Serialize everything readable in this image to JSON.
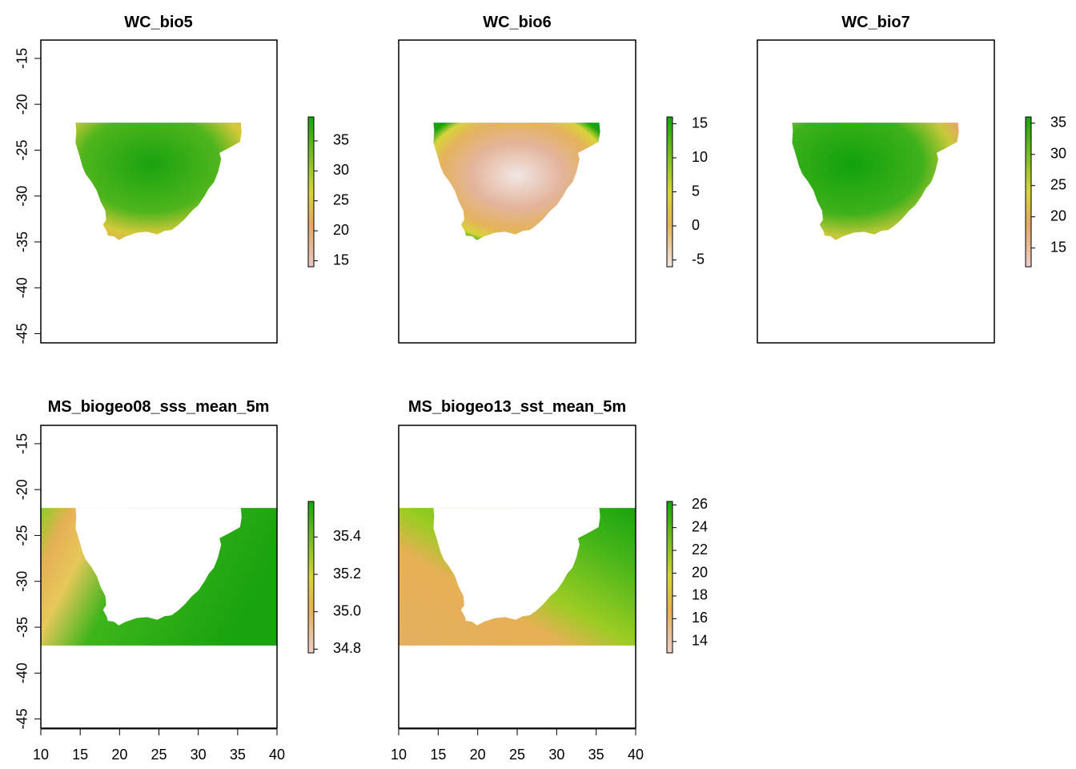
{
  "chart_data": [
    {
      "type": "heatmap",
      "title": "WC_bio5",
      "xlim": [
        10,
        40
      ],
      "ylim": [
        -46,
        -13
      ],
      "xticks": [],
      "yticks": [
        -15,
        -20,
        -25,
        -30,
        -35,
        -40,
        -45
      ],
      "extent": "land",
      "colorbar": {
        "range": [
          14,
          39
        ],
        "ticks": [
          15,
          20,
          25,
          30,
          35
        ]
      },
      "colors": {
        "low": "#e8c8c0",
        "mid": "#e6a763",
        "high": "#19a30f"
      }
    },
    {
      "type": "heatmap",
      "title": "WC_bio6",
      "xlim": [
        10,
        40
      ],
      "ylim": [
        -46,
        -13
      ],
      "xticks": [],
      "yticks": [],
      "extent": "land",
      "colorbar": {
        "range": [
          -6,
          16
        ],
        "ticks": [
          -5,
          0,
          5,
          10,
          15
        ]
      },
      "colors": {
        "low": "#f2e6e3",
        "mid": "#e5b35c",
        "high": "#19a30f"
      }
    },
    {
      "type": "heatmap",
      "title": "WC_bio7",
      "xlim": [
        10,
        40
      ],
      "ylim": [
        -46,
        -13
      ],
      "xticks": [],
      "yticks": [],
      "extent": "land",
      "colorbar": {
        "range": [
          12,
          36
        ],
        "ticks": [
          15,
          20,
          25,
          30,
          35
        ]
      },
      "colors": {
        "low": "#eccfc8",
        "mid": "#e6a763",
        "high": "#19a30f"
      }
    },
    {
      "type": "heatmap",
      "title": "MS_biogeo08_sss_mean_5m",
      "xlim": [
        10,
        40
      ],
      "ylim": [
        -46,
        -13
      ],
      "xticks": [
        10,
        15,
        20,
        25,
        30,
        35,
        40
      ],
      "yticks": [
        -15,
        -20,
        -25,
        -30,
        -35,
        -40,
        -45
      ],
      "extent": "sea",
      "colorbar": {
        "range": [
          34.78,
          35.59
        ],
        "ticks": [
          34.8,
          35.0,
          35.2,
          35.4
        ]
      },
      "colors": {
        "low": "#eccfc8",
        "mid": "#e6b055",
        "high": "#19a30f"
      }
    },
    {
      "type": "heatmap",
      "title": "MS_biogeo13_sst_mean_5m",
      "xlim": [
        10,
        40
      ],
      "ylim": [
        -46,
        -13
      ],
      "xticks": [
        10,
        15,
        20,
        25,
        30,
        35,
        40
      ],
      "yticks": [],
      "extent": "sea",
      "colorbar": {
        "range": [
          13,
          26.3
        ],
        "ticks": [
          14,
          16,
          18,
          20,
          22,
          24,
          26
        ]
      },
      "colors": {
        "low": "#eccfc8",
        "mid": "#e6b055",
        "high": "#19a30f"
      }
    }
  ]
}
